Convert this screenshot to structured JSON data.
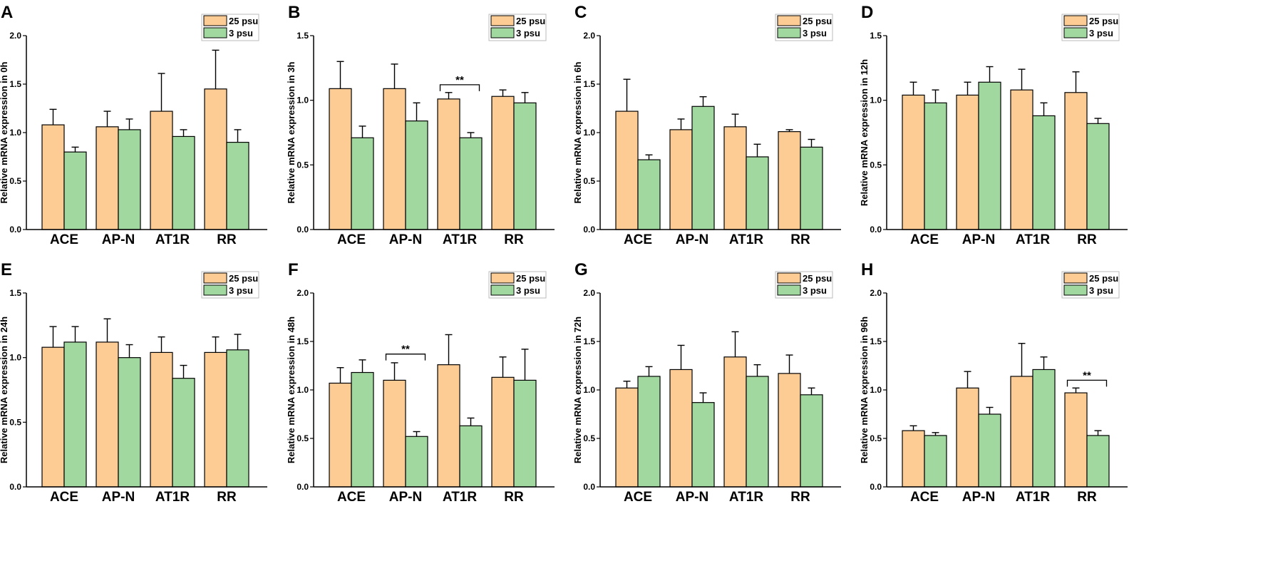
{
  "colors": {
    "s25": "#fdcc95",
    "s3": "#a0d8a0",
    "stroke": "#000000"
  },
  "chart_data": [
    {
      "panel": "A",
      "type": "bar",
      "ylabel": "Relative mRNA expression in 0h",
      "ylim": [
        0,
        2.0
      ],
      "yticks": [
        "0.0",
        "0.5",
        "1.0",
        "1.5",
        "2.0"
      ],
      "categories": [
        "ACE",
        "AP-N",
        "AT1R",
        "RR"
      ],
      "series": [
        {
          "name": "25 psu",
          "values": [
            1.08,
            1.06,
            1.22,
            1.45
          ],
          "errors": [
            0.16,
            0.16,
            0.39,
            0.4
          ]
        },
        {
          "name": "3 psu",
          "values": [
            0.8,
            1.03,
            0.96,
            0.9
          ],
          "errors": [
            0.05,
            0.11,
            0.07,
            0.13
          ]
        }
      ],
      "significance": []
    },
    {
      "panel": "B",
      "type": "bar",
      "ylabel": "Relative mRNA expression in 3h",
      "ylim": [
        0,
        1.5
      ],
      "yticks": [
        "0.0",
        "0.5",
        "1.0",
        "1.5"
      ],
      "categories": [
        "ACE",
        "AP-N",
        "AT1R",
        "RR"
      ],
      "series": [
        {
          "name": "25 psu",
          "values": [
            1.09,
            1.09,
            1.01,
            1.03
          ],
          "errors": [
            0.21,
            0.19,
            0.05,
            0.05
          ]
        },
        {
          "name": "3 psu",
          "values": [
            0.71,
            0.84,
            0.71,
            0.98
          ],
          "errors": [
            0.09,
            0.14,
            0.04,
            0.08
          ]
        }
      ],
      "significance": [
        {
          "category_index": 2,
          "label": "**",
          "y": 1.12
        }
      ]
    },
    {
      "panel": "C",
      "type": "bar",
      "ylabel": "Relative mRNA expression in 6h",
      "ylim": [
        0,
        2.0
      ],
      "yticks": [
        "0.0",
        "0.5",
        "1.0",
        "1.5",
        "2.0"
      ],
      "categories": [
        "ACE",
        "AP-N",
        "AT1R",
        "RR"
      ],
      "series": [
        {
          "name": "25 psu",
          "values": [
            1.22,
            1.03,
            1.06,
            1.01
          ],
          "errors": [
            0.33,
            0.11,
            0.13,
            0.02
          ]
        },
        {
          "name": "3 psu",
          "values": [
            0.72,
            1.27,
            0.75,
            0.85
          ],
          "errors": [
            0.05,
            0.1,
            0.13,
            0.08
          ]
        }
      ],
      "significance": []
    },
    {
      "panel": "D",
      "type": "bar",
      "ylabel": "Relative mRNA expression in 12h",
      "ylim": [
        0,
        1.5
      ],
      "yticks": [
        "0.0",
        "0.5",
        "1.0",
        "1.5"
      ],
      "categories": [
        "ACE",
        "AP-N",
        "AT1R",
        "RR"
      ],
      "series": [
        {
          "name": "25 psu",
          "values": [
            1.04,
            1.04,
            1.08,
            1.06
          ],
          "errors": [
            0.1,
            0.1,
            0.16,
            0.16
          ]
        },
        {
          "name": "3 psu",
          "values": [
            0.98,
            1.14,
            0.88,
            0.82
          ],
          "errors": [
            0.1,
            0.12,
            0.1,
            0.04
          ]
        }
      ],
      "significance": []
    },
    {
      "panel": "E",
      "type": "bar",
      "ylabel": "Relative mRNA expression in 24h",
      "ylim": [
        0,
        1.5
      ],
      "yticks": [
        "0.0",
        "0.5",
        "1.0",
        "1.5"
      ],
      "categories": [
        "ACE",
        "AP-N",
        "AT1R",
        "RR"
      ],
      "series": [
        {
          "name": "25 psu",
          "values": [
            1.08,
            1.12,
            1.04,
            1.04
          ],
          "errors": [
            0.16,
            0.18,
            0.12,
            0.12
          ]
        },
        {
          "name": "3 psu",
          "values": [
            1.12,
            1.0,
            0.84,
            1.06
          ],
          "errors": [
            0.12,
            0.1,
            0.1,
            0.12
          ]
        }
      ],
      "significance": []
    },
    {
      "panel": "F",
      "type": "bar",
      "ylabel": "Relative mRNA expression in 48h",
      "ylim": [
        0,
        2.0
      ],
      "yticks": [
        "0.0",
        "0.5",
        "1.0",
        "1.5",
        "2.0"
      ],
      "categories": [
        "ACE",
        "AP-N",
        "AT1R",
        "RR"
      ],
      "series": [
        {
          "name": "25 psu",
          "values": [
            1.07,
            1.1,
            1.26,
            1.13
          ],
          "errors": [
            0.16,
            0.18,
            0.31,
            0.21
          ]
        },
        {
          "name": "3 psu",
          "values": [
            1.18,
            0.52,
            0.63,
            1.1
          ],
          "errors": [
            0.13,
            0.05,
            0.08,
            0.32
          ]
        }
      ],
      "significance": [
        {
          "category_index": 1,
          "label": "**",
          "y": 1.37
        }
      ]
    },
    {
      "panel": "G",
      "type": "bar",
      "ylabel": "Relative mRNA expression in 72h",
      "ylim": [
        0,
        2.0
      ],
      "yticks": [
        "0.0",
        "0.5",
        "1.0",
        "1.5",
        "2.0"
      ],
      "categories": [
        "ACE",
        "AP-N",
        "AT1R",
        "RR"
      ],
      "series": [
        {
          "name": "25 psu",
          "values": [
            1.02,
            1.21,
            1.34,
            1.17
          ],
          "errors": [
            0.07,
            0.25,
            0.26,
            0.19
          ]
        },
        {
          "name": "3 psu",
          "values": [
            1.14,
            0.87,
            1.14,
            0.95
          ],
          "errors": [
            0.1,
            0.1,
            0.12,
            0.07
          ]
        }
      ],
      "significance": []
    },
    {
      "panel": "H",
      "type": "bar",
      "ylabel": "Relative mRNA expression in 96h",
      "ylim": [
        0,
        2.0
      ],
      "yticks": [
        "0.0",
        "0.5",
        "1.0",
        "1.5",
        "2.0"
      ],
      "categories": [
        "ACE",
        "AP-N",
        "AT1R",
        "RR"
      ],
      "series": [
        {
          "name": "25 psu",
          "values": [
            0.58,
            1.02,
            1.14,
            0.97
          ],
          "errors": [
            0.05,
            0.17,
            0.34,
            0.05
          ]
        },
        {
          "name": "3 psu",
          "values": [
            0.53,
            0.75,
            1.21,
            0.53
          ],
          "errors": [
            0.03,
            0.07,
            0.13,
            0.05
          ]
        }
      ],
      "significance": [
        {
          "category_index": 3,
          "label": "**",
          "y": 1.1
        }
      ]
    }
  ]
}
